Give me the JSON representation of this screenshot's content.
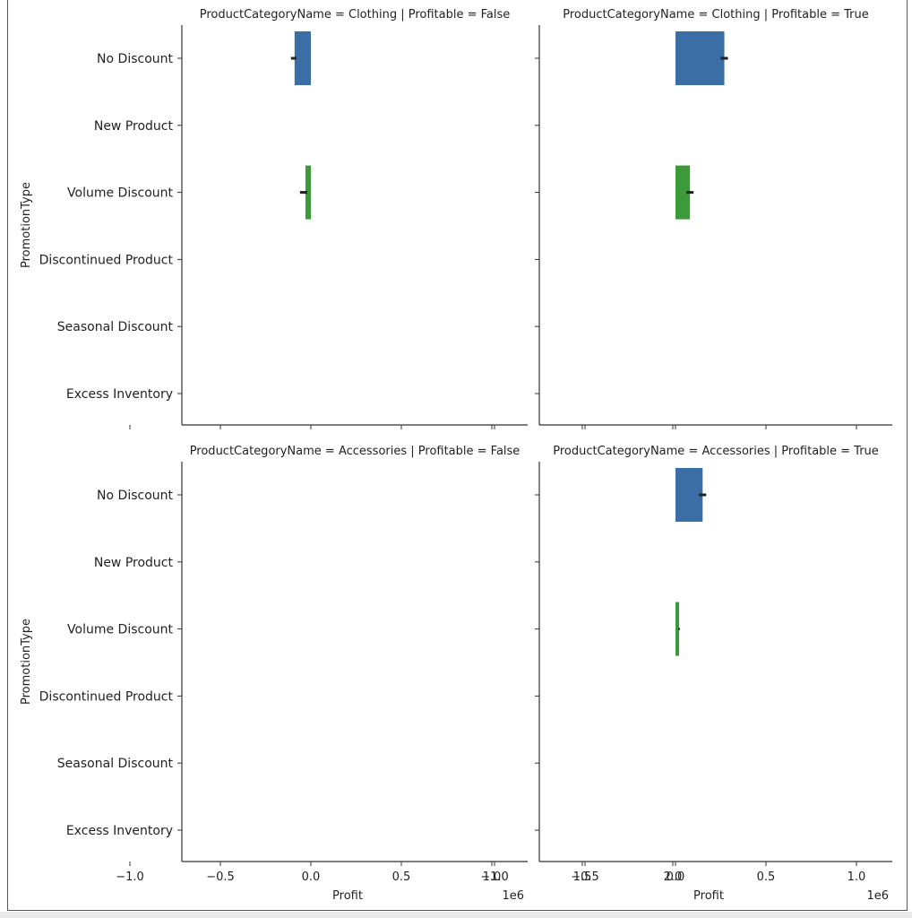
{
  "chart_data": {
    "type": "bar",
    "orientation": "horizontal",
    "y_categories": [
      "No Discount",
      "New Product",
      "Volume Discount",
      "Discontinued Product",
      "Seasonal Discount",
      "Excess Inventory"
    ],
    "xlabel": "Profit",
    "ylabel": "PromotionType",
    "x_offset_label": "1e6",
    "xlim": [
      -1.4,
      2.4
    ],
    "x_ticks": [
      -1.0,
      -0.5,
      0.0,
      0.5,
      1.0,
      1.5,
      2.0
    ],
    "x_tick_labels": [
      "−1.0",
      "−0.5",
      "0.0",
      "0.5",
      "1.0",
      "1.5",
      "2.0"
    ],
    "colors": {
      "No Discount": "#3b6ea5",
      "Volume Discount": "#3d9a3b",
      "errorbar": "#222222",
      "axis": "#333333"
    },
    "panels": [
      {
        "title": "ProductCategoryName = Clothing | Profitable = False",
        "bars": [
          {
            "category": "No Discount",
            "value": -0.09,
            "ci": [
              -0.11,
              -0.08
            ]
          },
          {
            "category": "Volume Discount",
            "value": -0.03,
            "ci": [
              -0.06,
              -0.02
            ]
          }
        ]
      },
      {
        "title": "ProductCategoryName = Clothing | Profitable = True",
        "bars": [
          {
            "category": "No Discount",
            "value": 0.27,
            "ci": [
              0.25,
              0.29
            ]
          },
          {
            "category": "Volume Discount",
            "value": 0.08,
            "ci": [
              0.06,
              0.1
            ]
          }
        ]
      },
      {
        "title": "ProductCategoryName = Accessories | Profitable = False",
        "bars": []
      },
      {
        "title": "ProductCategoryName = Accessories | Profitable = True",
        "bars": [
          {
            "category": "No Discount",
            "value": 0.15,
            "ci": [
              0.13,
              0.17
            ]
          },
          {
            "category": "Volume Discount",
            "value": 0.02,
            "ci": [
              0.02,
              0.02
            ]
          }
        ]
      }
    ]
  }
}
